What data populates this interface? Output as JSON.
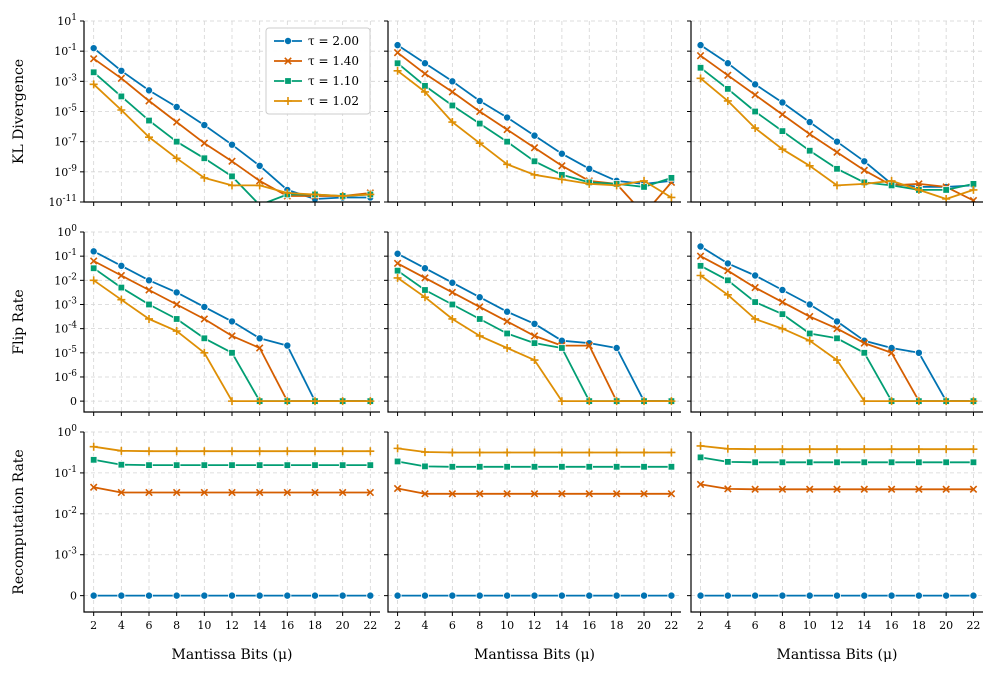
{
  "chart_data": {
    "type": "line",
    "layout": "3x3 grid of line plots, shared x axis per column, shared y axis per row",
    "x": [
      2,
      4,
      6,
      8,
      10,
      12,
      14,
      16,
      18,
      20,
      22
    ],
    "xlabel": "Mantissa Bits (μ)",
    "legend": {
      "placement": "top-left panel, upper right",
      "entries": [
        "τ = 2.00",
        "τ = 1.40",
        "τ = 1.10",
        "τ = 1.02"
      ]
    },
    "series_styles": [
      {
        "name": "τ = 2.00",
        "color": "#0173b2",
        "marker": "circle"
      },
      {
        "name": "τ = 1.40",
        "color": "#d55e00",
        "marker": "x"
      },
      {
        "name": "τ = 1.10",
        "color": "#029e73",
        "marker": "square"
      },
      {
        "name": "τ = 1.02",
        "color": "#de8f05",
        "marker": "plus"
      }
    ],
    "rows": [
      {
        "ylabel": "KL Divergence",
        "yscale": "log",
        "ylim_exp": [
          -11,
          1
        ],
        "tick_labels": [
          "10^1",
          "10^-1",
          "10^-3",
          "10^-5",
          "10^-7",
          "10^-9",
          "10^-11"
        ],
        "tick_values": [
          1,
          -1,
          -3,
          -5,
          -7,
          -9,
          -11
        ],
        "panels": [
          [
            [
              -0.8,
              -2.3,
              -3.6,
              -4.7,
              -5.9,
              -7.2,
              -8.6,
              -10.2,
              -10.8,
              -10.7,
              -10.7
            ],
            [
              -1.5,
              -2.8,
              -4.3,
              -5.7,
              -7.1,
              -8.3,
              -9.6,
              -10.6,
              -10.6,
              -10.6,
              -10.4
            ],
            [
              -2.4,
              -4.0,
              -5.6,
              -7.0,
              -8.1,
              -9.3,
              -11.2,
              -10.5,
              -10.5,
              -10.6,
              -10.5
            ],
            [
              -3.2,
              -4.9,
              -6.7,
              -8.1,
              -9.4,
              -9.9,
              -9.9,
              -10.4,
              -10.5,
              -10.6,
              -10.5
            ]
          ],
          [
            [
              -0.6,
              -1.8,
              -3.0,
              -4.3,
              -5.4,
              -6.6,
              -7.8,
              -8.8,
              -9.6,
              -9.8,
              -9.6
            ],
            [
              -1.1,
              -2.5,
              -3.7,
              -5.0,
              -6.2,
              -7.4,
              -8.6,
              -9.6,
              -9.8,
              -11.8,
              -9.7
            ],
            [
              -1.8,
              -3.3,
              -4.6,
              -5.8,
              -7.0,
              -8.3,
              -9.2,
              -9.7,
              -9.8,
              -10.0,
              -9.4
            ],
            [
              -2.3,
              -3.7,
              -5.7,
              -7.1,
              -8.5,
              -9.2,
              -9.5,
              -9.8,
              -9.9,
              -9.6,
              -10.7
            ]
          ],
          [
            [
              -0.6,
              -1.8,
              -3.2,
              -4.4,
              -5.7,
              -7.0,
              -8.3,
              -9.8,
              -10.0,
              -10.0,
              -9.9
            ],
            [
              -1.3,
              -2.6,
              -3.9,
              -5.2,
              -6.5,
              -7.7,
              -8.9,
              -9.9,
              -9.8,
              -10.0,
              -10.9
            ],
            [
              -2.1,
              -3.5,
              -5.0,
              -6.3,
              -7.6,
              -8.8,
              -9.7,
              -9.9,
              -10.2,
              -10.2,
              -9.8
            ],
            [
              -2.8,
              -4.3,
              -6.1,
              -7.5,
              -8.6,
              -9.9,
              -9.8,
              -9.6,
              -10.2,
              -10.8,
              -10.2
            ]
          ]
        ]
      },
      {
        "ylabel": "Flip Rate",
        "yscale": "symlog",
        "zero_value": -7,
        "ylim_exp": [
          -7.45,
          0
        ],
        "tick_labels": [
          "10^0",
          "10^-1",
          "10^-2",
          "10^-3",
          "10^-4",
          "10^-5",
          "10^-6",
          "0"
        ],
        "tick_values": [
          0,
          -1,
          -2,
          -3,
          -4,
          -5,
          -6,
          -7
        ],
        "panels": [
          [
            [
              -0.8,
              -1.4,
              -2.0,
              -2.5,
              -3.1,
              -3.7,
              -4.4,
              -4.7,
              -7,
              -7,
              -7
            ],
            [
              -1.2,
              -1.8,
              -2.4,
              -3.0,
              -3.6,
              -4.3,
              -4.8,
              -7,
              -7,
              -7,
              -7
            ],
            [
              -1.5,
              -2.3,
              -3.0,
              -3.6,
              -4.4,
              -5.0,
              -7,
              -7,
              -7,
              -7,
              -7
            ],
            [
              -2.0,
              -2.8,
              -3.6,
              -4.1,
              -5.0,
              -7,
              -7,
              -7,
              -7,
              -7,
              -7
            ]
          ],
          [
            [
              -0.9,
              -1.5,
              -2.1,
              -2.7,
              -3.3,
              -3.8,
              -4.5,
              -4.6,
              -4.8,
              -7,
              -7
            ],
            [
              -1.3,
              -1.9,
              -2.5,
              -3.1,
              -3.7,
              -4.3,
              -4.7,
              -4.7,
              -7,
              -7,
              -7
            ],
            [
              -1.6,
              -2.4,
              -3.0,
              -3.6,
              -4.2,
              -4.6,
              -4.8,
              -7,
              -7,
              -7,
              -7
            ],
            [
              -1.9,
              -2.7,
              -3.6,
              -4.3,
              -4.8,
              -5.3,
              -7,
              -7,
              -7,
              -7,
              -7
            ]
          ],
          [
            [
              -0.6,
              -1.3,
              -1.8,
              -2.4,
              -3.0,
              -3.7,
              -4.5,
              -4.8,
              -5.0,
              -7,
              -7
            ],
            [
              -1.0,
              -1.6,
              -2.3,
              -2.9,
              -3.5,
              -4.0,
              -4.6,
              -5.0,
              -7,
              -7,
              -7
            ],
            [
              -1.4,
              -2.0,
              -2.9,
              -3.4,
              -4.2,
              -4.4,
              -5.0,
              -7,
              -7,
              -7,
              -7
            ],
            [
              -1.8,
              -2.6,
              -3.6,
              -4.0,
              -4.5,
              -5.3,
              -7,
              -7,
              -7,
              -7,
              -7
            ]
          ]
        ]
      },
      {
        "ylabel": "Recomputation Rate",
        "yscale": "symlog",
        "zero_value": -4,
        "ylim_exp": [
          -4.4,
          0
        ],
        "tick_labels": [
          "10^0",
          "10^-1",
          "10^-2",
          "10^-3",
          "0"
        ],
        "tick_values": [
          0,
          -1,
          -2,
          -3,
          -4
        ],
        "panels": [
          [
            [
              -4,
              -4,
              -4,
              -4,
              -4,
              -4,
              -4,
              -4,
              -4,
              -4,
              -4
            ],
            [
              -1.35,
              -1.48,
              -1.48,
              -1.48,
              -1.48,
              -1.48,
              -1.48,
              -1.48,
              -1.48,
              -1.48,
              -1.48
            ],
            [
              -0.68,
              -0.8,
              -0.81,
              -0.81,
              -0.81,
              -0.81,
              -0.81,
              -0.81,
              -0.81,
              -0.81,
              -0.81
            ],
            [
              -0.36,
              -0.46,
              -0.47,
              -0.47,
              -0.47,
              -0.47,
              -0.47,
              -0.47,
              -0.47,
              -0.47,
              -0.47
            ]
          ],
          [
            [
              -4,
              -4,
              -4,
              -4,
              -4,
              -4,
              -4,
              -4,
              -4,
              -4,
              -4
            ],
            [
              -1.38,
              -1.51,
              -1.51,
              -1.51,
              -1.51,
              -1.51,
              -1.51,
              -1.51,
              -1.51,
              -1.51,
              -1.51
            ],
            [
              -0.72,
              -0.84,
              -0.85,
              -0.85,
              -0.85,
              -0.85,
              -0.85,
              -0.85,
              -0.85,
              -0.85,
              -0.85
            ],
            [
              -0.4,
              -0.49,
              -0.5,
              -0.5,
              -0.5,
              -0.5,
              -0.5,
              -0.5,
              -0.5,
              -0.5,
              -0.5
            ]
          ],
          [
            [
              -4,
              -4,
              -4,
              -4,
              -4,
              -4,
              -4,
              -4,
              -4,
              -4,
              -4
            ],
            [
              -1.28,
              -1.39,
              -1.4,
              -1.4,
              -1.4,
              -1.4,
              -1.4,
              -1.4,
              -1.4,
              -1.4,
              -1.4
            ],
            [
              -0.62,
              -0.73,
              -0.74,
              -0.74,
              -0.74,
              -0.74,
              -0.74,
              -0.74,
              -0.74,
              -0.74,
              -0.74
            ],
            [
              -0.34,
              -0.41,
              -0.42,
              -0.42,
              -0.42,
              -0.42,
              -0.42,
              -0.42,
              -0.42,
              -0.42,
              -0.42
            ]
          ]
        ]
      }
    ]
  }
}
